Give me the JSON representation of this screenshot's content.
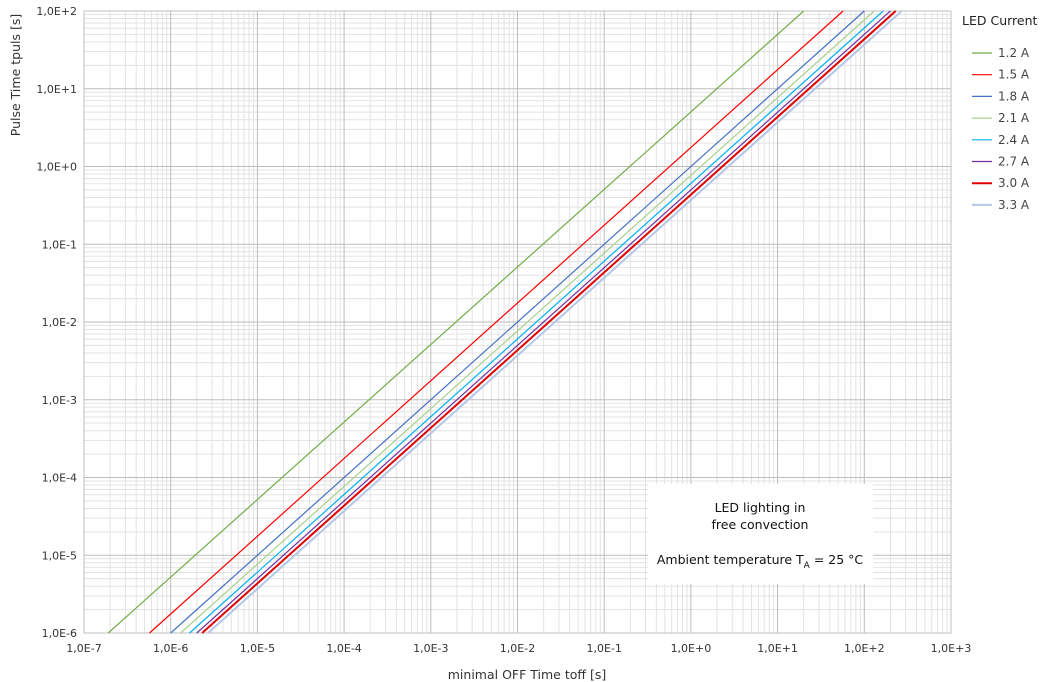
{
  "chart_data": {
    "type": "line",
    "scale": {
      "x": "log",
      "y": "log"
    },
    "xlim": [
      1e-07,
      1000
    ],
    "ylim": [
      1e-06,
      100
    ],
    "grid": true,
    "xlabel": "minimal OFF Time  toff [s]",
    "ylabel": "Pulse Time  tpuls [s]",
    "x_tick_labels": [
      "1,0E-7",
      "1,0E-6",
      "1,0E-5",
      "1,0E-4",
      "1,0E-3",
      "1,0E-2",
      "1,0E-1",
      "1,0E+0",
      "1,0E+1",
      "1,0E+2",
      "1,0E+3"
    ],
    "y_tick_labels": [
      "1,0E-6",
      "1,0E-5",
      "1,0E-4",
      "1,0E-3",
      "1,0E-2",
      "1,0E-1",
      "1,0E+0",
      "1,0E+1",
      "1,0E+2"
    ],
    "legend_title": "LED Current",
    "legend_position": "right",
    "series": [
      {
        "name": "1.2 A",
        "color": "#70ad47",
        "width": 1.2,
        "x": [
          1.9e-07,
          20
        ],
        "y": [
          1e-06,
          100
        ]
      },
      {
        "name": "1.5 A",
        "color": "#ff0000",
        "width": 1.2,
        "x": [
          5.7e-07,
          57
        ],
        "y": [
          1e-06,
          100
        ]
      },
      {
        "name": "1.8 A",
        "color": "#4472c4",
        "width": 1.2,
        "x": [
          1e-06,
          100
        ],
        "y": [
          1e-06,
          100
        ]
      },
      {
        "name": "2.1 A",
        "color": "#a9d18e",
        "width": 1.2,
        "x": [
          1.3e-06,
          130
        ],
        "y": [
          1e-06,
          100
        ]
      },
      {
        "name": "2.4 A",
        "color": "#00b0f0",
        "width": 1.2,
        "x": [
          1.65e-06,
          165
        ],
        "y": [
          1e-06,
          100
        ]
      },
      {
        "name": "2.7 A",
        "color": "#7030a0",
        "width": 1.2,
        "x": [
          2e-06,
          200
        ],
        "y": [
          1e-06,
          100
        ]
      },
      {
        "name": "3.0 A",
        "color": "#e00000",
        "width": 2.0,
        "x": [
          2.3e-06,
          230
        ],
        "y": [
          1e-06,
          100
        ]
      },
      {
        "name": "3.3 A",
        "color": "#b4c7e7",
        "width": 2.0,
        "x": [
          2.7e-06,
          270
        ],
        "y": [
          1e-06,
          100
        ]
      }
    ],
    "annotation": {
      "line1": "LED lighting in",
      "line2": "free convection",
      "line3_prefix": "Ambient temperature T",
      "line3_sub": "A",
      "line3_suffix": " = 25 °C"
    }
  }
}
